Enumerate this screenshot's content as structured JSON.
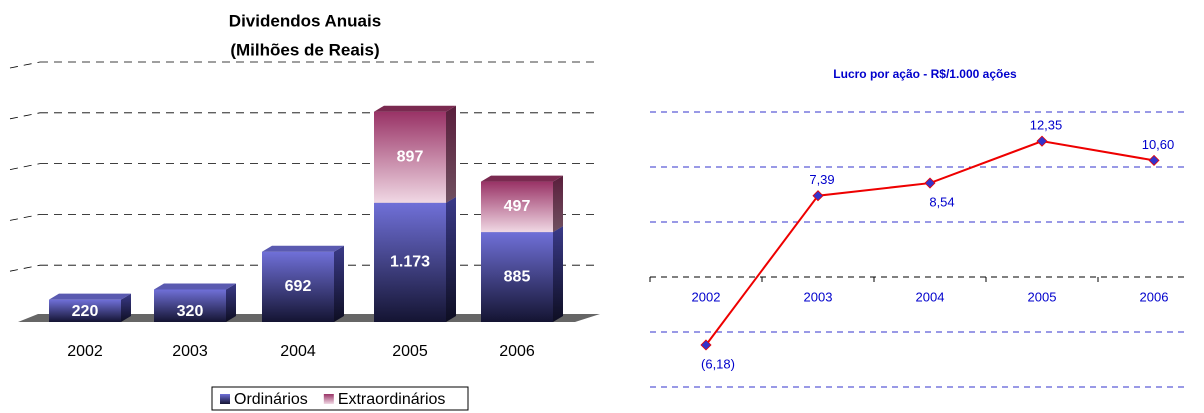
{
  "chart_data": [
    {
      "type": "stacked-bar-3d",
      "title": [
        "Dividendos Anuais",
        "(Milhões de Reais)"
      ],
      "categories": [
        "2002",
        "2003",
        "2004",
        "2005",
        "2006"
      ],
      "series": [
        {
          "name": "Ordinários",
          "color": "#7070d8",
          "values": [
            220,
            320,
            692,
            1173,
            885
          ],
          "value_labels": [
            "220",
            "320",
            "692",
            "1.173",
            "885"
          ]
        },
        {
          "name": "Extraordinários",
          "color": "#993366",
          "values": [
            null,
            null,
            null,
            897,
            497
          ],
          "value_labels": [
            null,
            null,
            null,
            "897",
            "497"
          ]
        }
      ],
      "ylim": [
        0,
        2500
      ],
      "yticks": [
        0,
        500,
        1000,
        1500,
        2000,
        2500
      ],
      "grid": true,
      "legend": "bottom"
    },
    {
      "type": "line",
      "title": "Lucro por ação - R$/1.000 ações",
      "categories": [
        "2002",
        "2003",
        "2004",
        "2005",
        "2006"
      ],
      "values": [
        -6.18,
        7.39,
        8.54,
        12.35,
        10.6
      ],
      "value_labels": [
        "(6,18)",
        "7,39",
        "8,54",
        "12,35",
        "10,60"
      ],
      "color": "#ee0000",
      "marker_color": "#3333cc",
      "text_color": "#0000cc",
      "ylim": [
        -10,
        15
      ],
      "yticks": [
        -10,
        -5,
        0,
        5,
        10,
        15
      ],
      "grid": true
    }
  ]
}
